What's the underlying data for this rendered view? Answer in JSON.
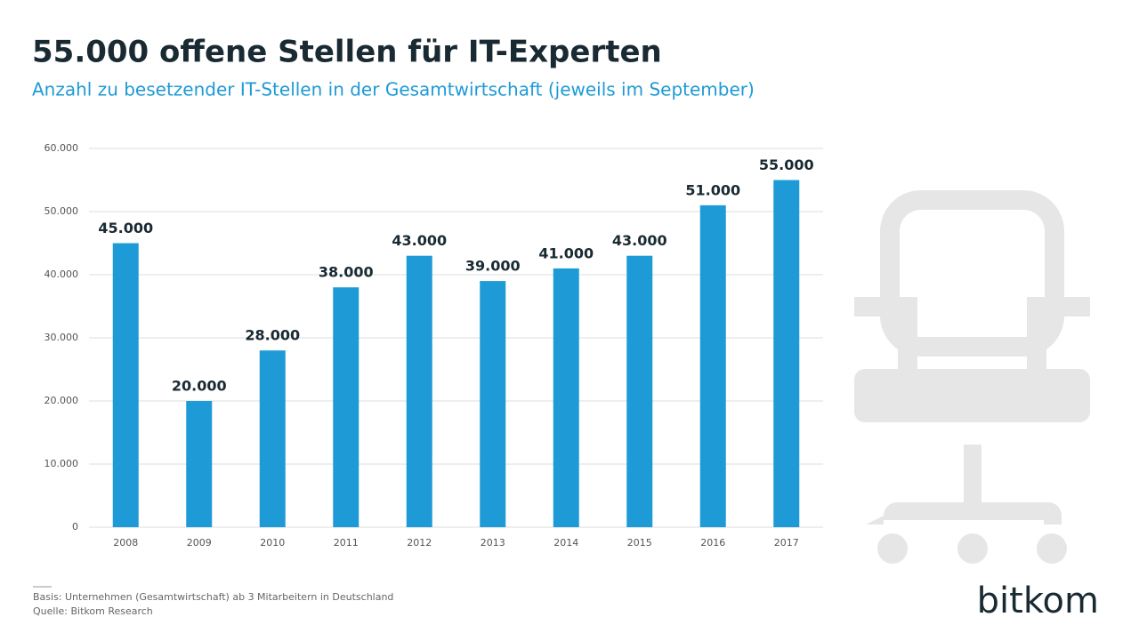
{
  "chart_data": {
    "type": "bar",
    "title": "55.000 offene Stellen für IT-Experten",
    "subtitle": "Anzahl zu besetzender IT-Stellen in der Gesamtwirtschaft (jeweils im September)",
    "categories": [
      "2008",
      "2009",
      "2010",
      "2011",
      "2012",
      "2013",
      "2014",
      "2015",
      "2016",
      "2017"
    ],
    "values": [
      45000,
      20000,
      28000,
      38000,
      43000,
      39000,
      41000,
      43000,
      51000,
      55000
    ],
    "value_labels": [
      "45.000",
      "20.000",
      "28.000",
      "38.000",
      "43.000",
      "39.000",
      "41.000",
      "43.000",
      "51.000",
      "55.000"
    ],
    "color": "#1e9bd7",
    "ylim": [
      0,
      60000
    ],
    "yticks": [
      0,
      {
        "value": 10000,
        "label": "10.000"
      },
      {
        "value": 20000,
        "label": "20.000"
      },
      {
        "value": 30000,
        "label": "30.000"
      },
      {
        "value": 40000,
        "label": "40.000"
      },
      {
        "value": 50000,
        "label": "50.000"
      },
      {
        "value": 60000,
        "label": "60.000"
      }
    ],
    "grid": true,
    "notes": [
      "Basis: Unternehmen (Gesamtwirtschaft) ab 3 Mitarbeitern in Deutschland",
      "Quelle: Bitkom Research"
    ],
    "logo": "bitkom"
  }
}
